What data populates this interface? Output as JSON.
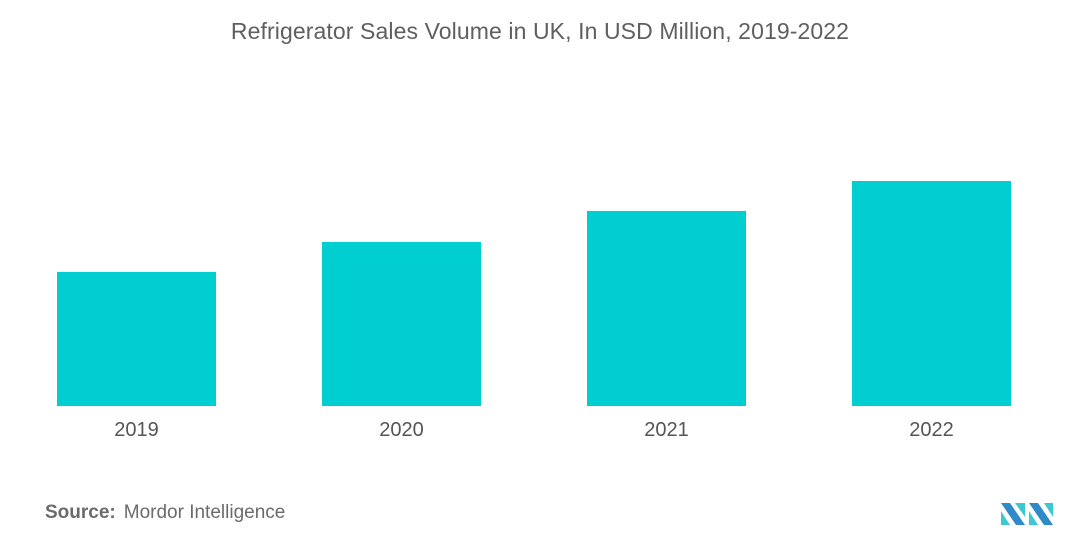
{
  "chart_data": {
    "type": "bar",
    "title": "Refrigerator Sales Volume in UK, In USD Million, 2019-2022",
    "categories": [
      "2019",
      "2020",
      "2021",
      "2022"
    ],
    "values": [
      59.6,
      72.9,
      86.7,
      100
    ],
    "value_note": "relative values (no y-axis shown); 2022 indexed to 100",
    "xlabel": "",
    "ylabel": "",
    "ylim": [
      0,
      100
    ],
    "grid": false,
    "legend": "none",
    "bar_color": "#00CED1"
  },
  "source": {
    "label": "Source:",
    "text": "Mordor Intelligence"
  },
  "logo": {
    "icon": "mordor-intelligence-logo-icon",
    "colors": [
      "#2E8BC9",
      "#3CC8D0"
    ]
  }
}
